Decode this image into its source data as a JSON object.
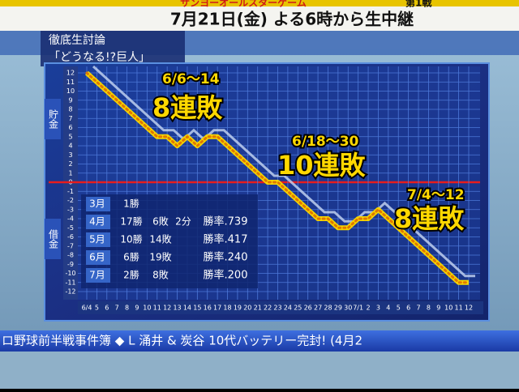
{
  "banner": {
    "event": "サンヨーオールスターゲーム",
    "game": "第1戦",
    "schedule": "7月21日(金) よる6時から生中継"
  },
  "segment": {
    "line1": "徹底生討論",
    "line2": "「どうなる!?巨人」"
  },
  "chart_data": {
    "type": "line",
    "upper_label": "貯金",
    "lower_label": "借金",
    "categories": [
      "6/4",
      "5",
      "6",
      "7",
      "8",
      "9",
      "10",
      "11",
      "12",
      "13",
      "14",
      "15",
      "16",
      "17",
      "18",
      "19",
      "20",
      "21",
      "22",
      "23",
      "24",
      "25",
      "26",
      "27",
      "28",
      "29",
      "30",
      "7/1",
      "2",
      "3",
      "4",
      "5",
      "6",
      "7",
      "8",
      "9",
      "10",
      "11",
      "12"
    ],
    "series": [
      {
        "color": "#f5d400",
        "values": [
          12,
          11,
          10,
          9,
          8,
          7,
          6,
          5,
          5,
          4,
          5,
          4,
          5,
          5,
          4,
          3,
          2,
          1,
          0,
          0,
          -1,
          -2,
          -3,
          -4,
          -4,
          -5,
          -5,
          -4,
          -4,
          -3,
          -4,
          -5,
          -6,
          -7,
          -8,
          -9,
          -10,
          -11,
          -11
        ]
      }
    ],
    "ylim": [
      -12,
      12
    ],
    "yticks": [
      12,
      11,
      10,
      9,
      8,
      7,
      6,
      5,
      4,
      3,
      2,
      1,
      0,
      -1,
      -2,
      -3,
      -4,
      -5,
      -6,
      -7,
      -8,
      -9,
      -10,
      -11,
      -12
    ],
    "grid": true,
    "zero_line_color": "#e81c1c",
    "annotations": [
      {
        "range": "6/6～14",
        "text": "8連敗"
      },
      {
        "range": "6/18～30",
        "text": "10連敗"
      },
      {
        "range": "7/4～12",
        "text": "8連敗"
      }
    ],
    "record_table": [
      {
        "month": "3月",
        "wins": "1勝"
      },
      {
        "month": "4月",
        "wins": "17勝",
        "losses": "6敗",
        "draws": "2分",
        "rate": "勝率.739"
      },
      {
        "month": "5月",
        "wins": "10勝",
        "losses": "14敗",
        "rate": "勝率.417"
      },
      {
        "month": "6月",
        "wins": "6勝",
        "losses": "19敗",
        "rate": "勝率.240"
      },
      {
        "month": "7月",
        "wins": "2勝",
        "losses": "8敗",
        "rate": "勝率.200"
      }
    ]
  },
  "ticker": "ロ野球前半戦事件簿 ◆ L 涌井 & 炭谷 10代バッテリー完封! (4月2"
}
